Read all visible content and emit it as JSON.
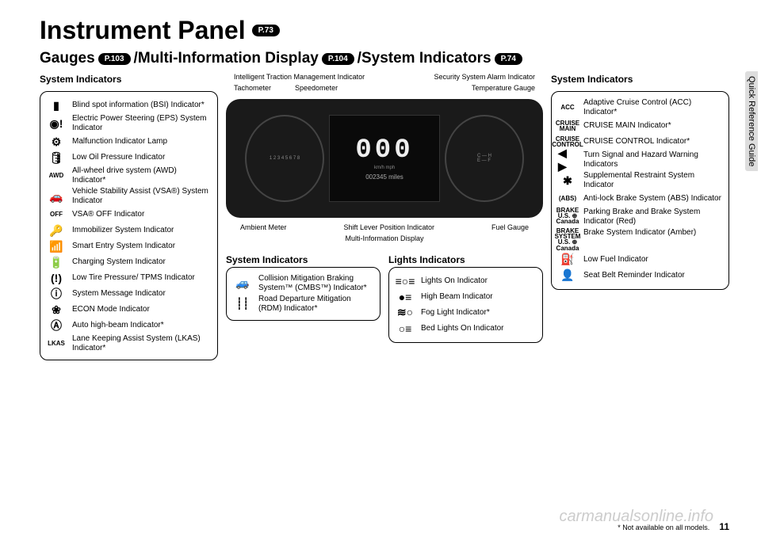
{
  "header": {
    "title": "Instrument Panel",
    "title_ref": "P.73",
    "sub_parts": [
      "Gauges",
      "/Multi-Information Display",
      "/System Indicators"
    ],
    "sub_refs": [
      "P.103",
      "P.104",
      "P.74"
    ]
  },
  "side_tab": "Quick Reference Guide",
  "left": {
    "title": "System Indicators",
    "items": [
      {
        "icon": "▮",
        "label": "Blind spot information (BSI) Indicator*"
      },
      {
        "icon": "◉!",
        "label": "Electric Power Steering (EPS) System Indicator"
      },
      {
        "icon": "⚙",
        "label": "Malfunction Indicator Lamp"
      },
      {
        "icon": "🛢",
        "label": "Low Oil Pressure Indicator"
      },
      {
        "icon": "AWD",
        "label": "All-wheel drive system (AWD) Indicator*"
      },
      {
        "icon": "🚗",
        "label": "Vehicle Stability Assist (VSA®) System Indicator"
      },
      {
        "icon": "OFF",
        "label": "VSA® OFF Indicator"
      },
      {
        "icon": "🔑",
        "label": "Immobilizer System Indicator"
      },
      {
        "icon": "📶",
        "label": "Smart Entry System Indicator"
      },
      {
        "icon": "🔋",
        "label": "Charging System Indicator"
      },
      {
        "icon": "(!)",
        "label": "Low Tire Pressure/ TPMS Indicator"
      },
      {
        "icon": "ⓘ",
        "label": "System Message Indicator"
      },
      {
        "icon": "❀",
        "label": "ECON Mode Indicator"
      },
      {
        "icon": "Ⓐ",
        "label": "Auto high-beam Indicator*"
      },
      {
        "icon": "LKAS",
        "label": "Lane Keeping Assist System (LKAS) Indicator*"
      }
    ]
  },
  "center": {
    "top_callouts_left": [
      "Intelligent Traction Management Indicator",
      "Tachometer",
      "Speedometer"
    ],
    "top_callouts_right": [
      "Security System Alarm Indicator",
      "Temperature Gauge"
    ],
    "speed": "000",
    "odo": "002345 miles",
    "units": "km/h\nmph",
    "bottom_callouts": [
      "Ambient Meter",
      "Multi-Information Display",
      "Shift Lever Position Indicator",
      "Fuel Gauge"
    ],
    "sys_ind": {
      "title": "System Indicators",
      "items": [
        {
          "icon": "🚙",
          "label": "Collision Mitigation Braking System™ (CMBS™) Indicator*"
        },
        {
          "icon": "┊┊",
          "label": "Road Departure Mitigation (RDM) Indicator*"
        }
      ]
    },
    "lights": {
      "title": "Lights Indicators",
      "items": [
        {
          "icon": "≡○≡",
          "label": "Lights On Indicator"
        },
        {
          "icon": "●≡",
          "label": "High Beam Indicator"
        },
        {
          "icon": "≋○",
          "label": "Fog Light Indicator*"
        },
        {
          "icon": "○≡",
          "label": "Bed Lights On Indicator"
        }
      ]
    }
  },
  "right": {
    "title": "System Indicators",
    "items": [
      {
        "icon": "ACC",
        "label": "Adaptive Cruise Control (ACC) Indicator*"
      },
      {
        "icon": "CRUISE\nMAIN",
        "label": "CRUISE MAIN Indicator*"
      },
      {
        "icon": "CRUISE\nCONTROL",
        "label": "CRUISE CONTROL Indicator*"
      },
      {
        "icon": "◀ ▶",
        "label": "Turn Signal and Hazard Warning Indicators"
      },
      {
        "icon": "✱",
        "label": "Supplemental Restraint System Indicator"
      },
      {
        "icon": "(ABS)",
        "label": "Anti-lock Brake System (ABS) Indicator"
      },
      {
        "icon": "BRAKE\nU.S.\n⊕\nCanada",
        "label": "Parking Brake and Brake System Indicator (Red)"
      },
      {
        "icon": "BRAKE\nSYSTEM\nU.S.\n⊕\nCanada",
        "label": "Brake System Indicator (Amber)"
      },
      {
        "icon": "⛽",
        "label": "Low Fuel Indicator"
      },
      {
        "icon": "👤",
        "label": "Seat Belt Reminder Indicator"
      }
    ]
  },
  "footer": {
    "note": "* Not available on all models.",
    "page": "11",
    "watermark": "carmanualsonline.info"
  }
}
